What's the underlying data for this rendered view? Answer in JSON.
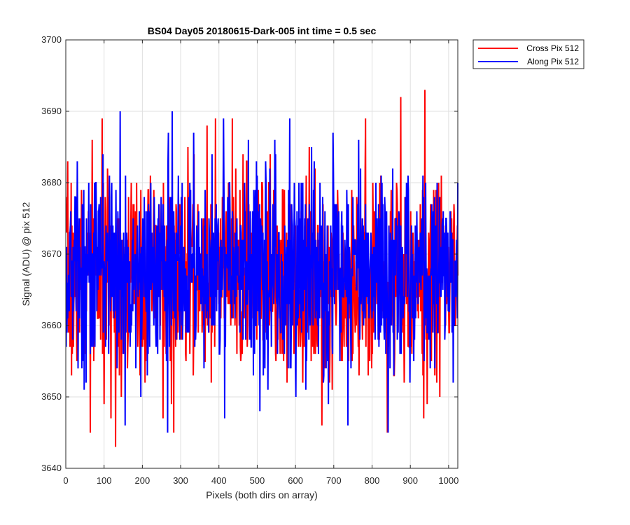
{
  "chart_data": {
    "type": "line",
    "title": "BS04 Day05 20180615-Dark-005 int time = 0.5 sec",
    "xlabel": "Pixels (both dirs on array)",
    "ylabel": "Signal (ADU) @ pix 512",
    "xlim": [
      0,
      1024
    ],
    "ylim": [
      3640,
      3700
    ],
    "xticks": [
      "0",
      "100",
      "200",
      "300",
      "400",
      "500",
      "600",
      "700",
      "800",
      "900",
      "1000"
    ],
    "yticks": [
      "3640",
      "3650",
      "3660",
      "3670",
      "3680",
      "3690",
      "3700"
    ],
    "grid": true,
    "legend_position": "outside-top-right",
    "series": [
      {
        "name": "Cross Pix 512",
        "color": "#ff0000",
        "noise": {
          "mean": 3667,
          "sd": 7,
          "min": 3643,
          "max": 3693,
          "seed": 7
        },
        "features": [
          [
            64,
            3645
          ],
          [
            130,
            3643
          ],
          [
            282,
            3645
          ],
          [
            369,
            3688
          ],
          [
            840,
            3645
          ],
          [
            875,
            3692
          ],
          [
            935,
            3647
          ],
          [
            938,
            3693
          ]
        ]
      },
      {
        "name": "Along Pix 512",
        "color": "#0000ff",
        "noise": {
          "mean": 3668,
          "sd": 7,
          "min": 3645,
          "max": 3690,
          "seed": 13
        },
        "features": [
          [
            142,
            3690
          ],
          [
            155,
            3646
          ],
          [
            412,
            3689
          ],
          [
            415,
            3647
          ],
          [
            585,
            3689
          ],
          [
            737,
            3646
          ],
          [
            266,
            3645
          ],
          [
            1024,
            3680
          ]
        ]
      }
    ],
    "n_points": 1024
  }
}
